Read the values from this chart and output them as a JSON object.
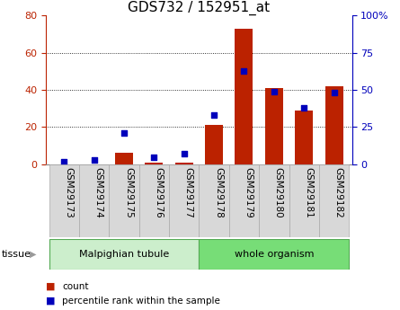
{
  "title": "GDS732 / 152951_at",
  "samples": [
    "GSM29173",
    "GSM29174",
    "GSM29175",
    "GSM29176",
    "GSM29177",
    "GSM29178",
    "GSM29179",
    "GSM29180",
    "GSM29181",
    "GSM29182"
  ],
  "counts": [
    0,
    0,
    6,
    1,
    1,
    21,
    73,
    41,
    29,
    42
  ],
  "percentiles": [
    2,
    3,
    21,
    5,
    7,
    33,
    63,
    49,
    38,
    48
  ],
  "left_ylim": [
    0,
    80
  ],
  "right_ylim": [
    0,
    100
  ],
  "left_yticks": [
    0,
    20,
    40,
    60,
    80
  ],
  "right_yticks": [
    0,
    25,
    50,
    75,
    100
  ],
  "right_yticklabels": [
    "0",
    "25",
    "50",
    "75",
    "100%"
  ],
  "bar_color": "#bb2200",
  "dot_color": "#0000bb",
  "tissue_groups": [
    {
      "label": "Malpighian tubule",
      "count": 5,
      "color": "#cceecc"
    },
    {
      "label": "whole organism",
      "count": 5,
      "color": "#77dd77"
    }
  ],
  "legend_count_label": "count",
  "legend_percentile_label": "percentile rank within the sample",
  "tissue_label": "tissue",
  "title_fontsize": 11,
  "tick_fontsize": 8,
  "label_fontsize": 7.5,
  "tissue_fontsize": 8
}
